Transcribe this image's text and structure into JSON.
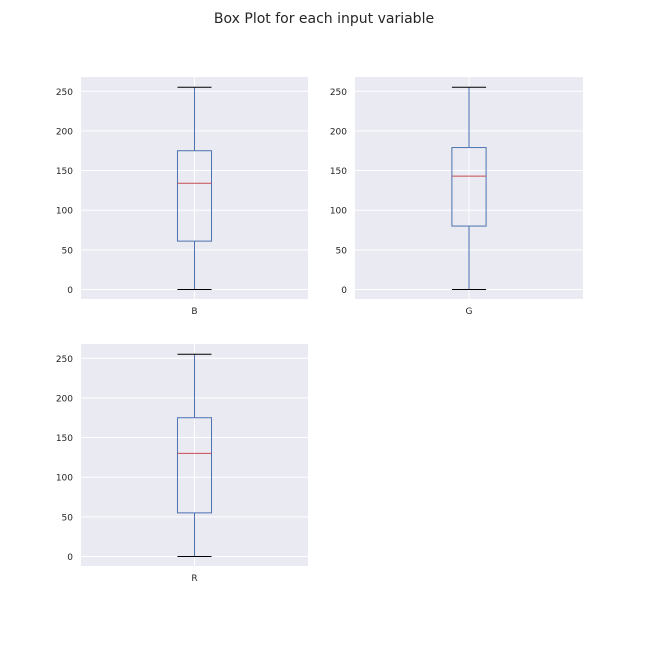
{
  "figure": {
    "title": "Box Plot for each input variable"
  },
  "colors": {
    "background": "#eaeaf2",
    "grid": "#ffffff",
    "box": "#4c72b0",
    "median": "#c44e52",
    "cap": "#000000",
    "tick_text": "#262626"
  },
  "chart_data": [
    {
      "type": "box",
      "category": "B",
      "stats": {
        "min": 0,
        "q1": 61,
        "median": 134,
        "q3": 175,
        "max": 255
      },
      "yticks": [
        0,
        50,
        100,
        150,
        200,
        250
      ],
      "ylim": [
        -12,
        268
      ],
      "grid": true
    },
    {
      "type": "box",
      "category": "G",
      "stats": {
        "min": 0,
        "q1": 80,
        "median": 143,
        "q3": 179,
        "max": 255
      },
      "yticks": [
        0,
        50,
        100,
        150,
        200,
        250
      ],
      "ylim": [
        -12,
        268
      ],
      "grid": true
    },
    {
      "type": "box",
      "category": "R",
      "stats": {
        "min": 0,
        "q1": 55,
        "median": 130,
        "q3": 175,
        "max": 255
      },
      "yticks": [
        0,
        50,
        100,
        150,
        200,
        250
      ],
      "ylim": [
        -12,
        268
      ],
      "grid": true
    }
  ]
}
